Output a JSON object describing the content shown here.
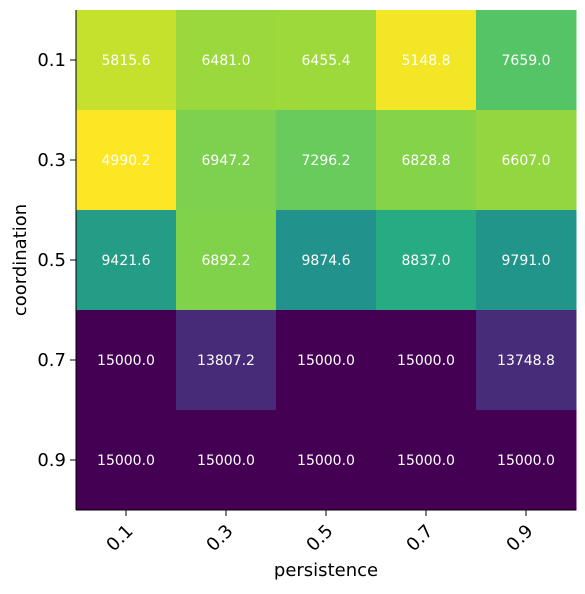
{
  "chart_data": {
    "type": "heatmap",
    "title": "",
    "xlabel": "persistence",
    "ylabel": "coordination",
    "x_categories": [
      "0.1",
      "0.3",
      "0.5",
      "0.7",
      "0.9"
    ],
    "y_categories": [
      "0.1",
      "0.3",
      "0.5",
      "0.7",
      "0.9"
    ],
    "values": [
      [
        5815.6,
        6481.0,
        6455.4,
        5148.8,
        7659.0
      ],
      [
        4990.2,
        6947.2,
        7296.2,
        6828.8,
        6607.0
      ],
      [
        9421.6,
        6892.2,
        9874.6,
        8837.0,
        9791.0
      ],
      [
        15000.0,
        13807.2,
        15000.0,
        15000.0,
        13748.8
      ],
      [
        15000.0,
        15000.0,
        15000.0,
        15000.0,
        15000.0
      ]
    ],
    "colormap": "viridis_r",
    "value_range": [
      4990.2,
      15000.0
    ],
    "x_tick_rotation": 45,
    "grid": false,
    "colors": {
      "cell_text": "#ffffff",
      "axis": "#000000"
    }
  }
}
